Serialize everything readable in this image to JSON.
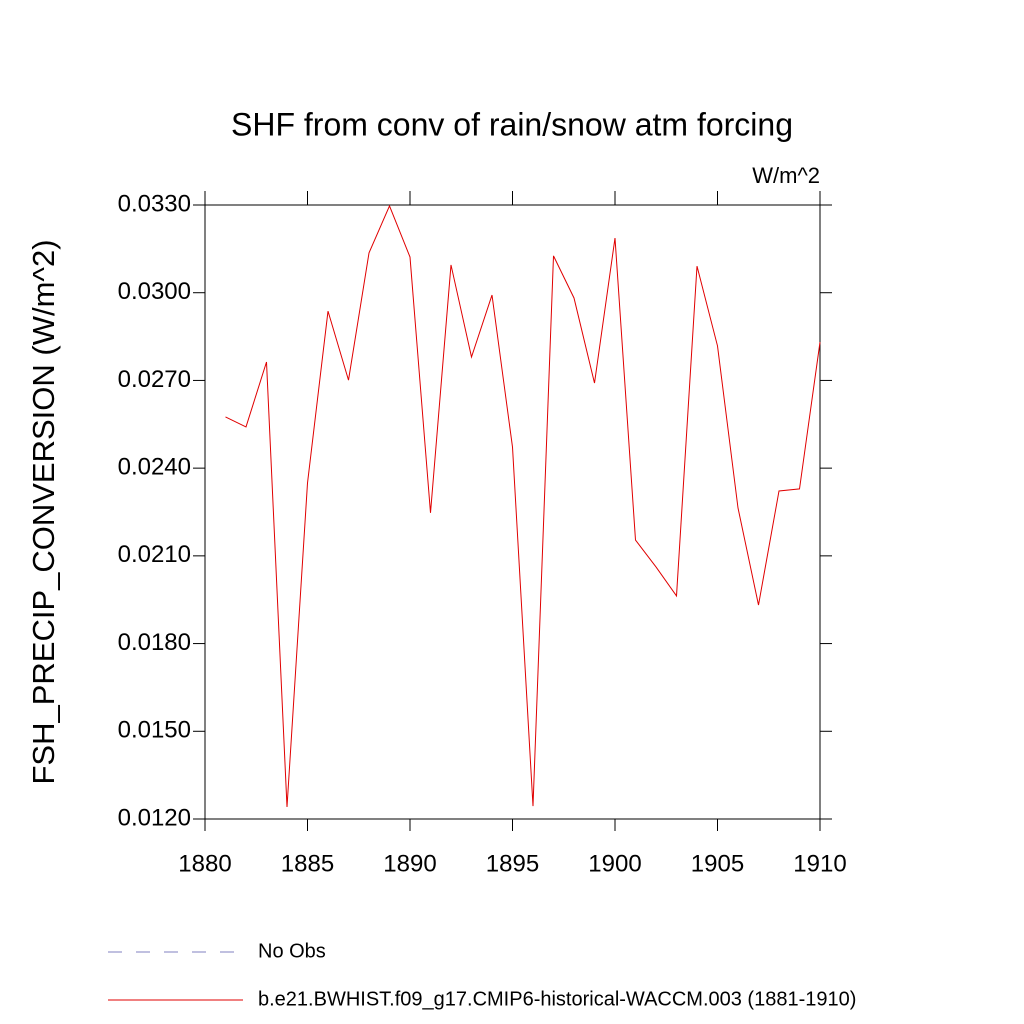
{
  "chart_data": {
    "type": "line",
    "title": "SHF from conv of rain/snow atm forcing",
    "units": "W/m^2",
    "y_label": "FSH_PRECIP_CONVERSION  (W/m^2)",
    "x": [
      1881,
      1882,
      1883,
      1884,
      1885,
      1886,
      1887,
      1888,
      1889,
      1890,
      1891,
      1892,
      1893,
      1894,
      1895,
      1896,
      1897,
      1898,
      1899,
      1900,
      1901,
      1902,
      1903,
      1904,
      1905,
      1906,
      1907,
      1908,
      1909,
      1910
    ],
    "series": [
      {
        "name": "No Obs",
        "color": "#8080c0",
        "dash": true,
        "values": [
          null,
          null,
          null,
          null,
          null,
          null,
          null,
          null,
          null,
          null,
          null,
          null,
          null,
          null,
          null,
          null,
          null,
          null,
          null,
          null,
          null,
          null,
          null,
          null,
          null,
          null,
          null,
          null,
          null,
          null
        ]
      },
      {
        "name": "b.e21.BWHIST.f09_g17.CMIP6-historical-WACCM.003 (1881-1910)",
        "color": "#e00000",
        "dash": false,
        "values": [
          0.02575,
          0.02541,
          0.02763,
          0.01241,
          0.02349,
          0.02937,
          0.02701,
          0.03136,
          0.03297,
          0.03122,
          0.02247,
          0.03095,
          0.0278,
          0.02992,
          0.02472,
          0.01244,
          0.03126,
          0.02982,
          0.02691,
          0.03187,
          0.02154,
          0.02062,
          0.01963,
          0.03091,
          0.02818,
          0.02264,
          0.01932,
          0.02322,
          0.02329,
          0.02831
        ]
      }
    ],
    "xlim": [
      1880,
      1910
    ],
    "xticks": [
      1880,
      1885,
      1890,
      1895,
      1900,
      1905,
      1910
    ],
    "ylim": [
      0.012,
      0.033
    ],
    "yticks": [
      {
        "value": 0.012,
        "label": "0.0120"
      },
      {
        "value": 0.015,
        "label": "0.0150"
      },
      {
        "value": 0.018,
        "label": "0.0180"
      },
      {
        "value": 0.021,
        "label": "0.0210"
      },
      {
        "value": 0.024,
        "label": "0.0240"
      },
      {
        "value": 0.027,
        "label": "0.0270"
      },
      {
        "value": 0.03,
        "label": "0.0300"
      },
      {
        "value": 0.033,
        "label": "0.0330"
      }
    ],
    "grid": false
  }
}
